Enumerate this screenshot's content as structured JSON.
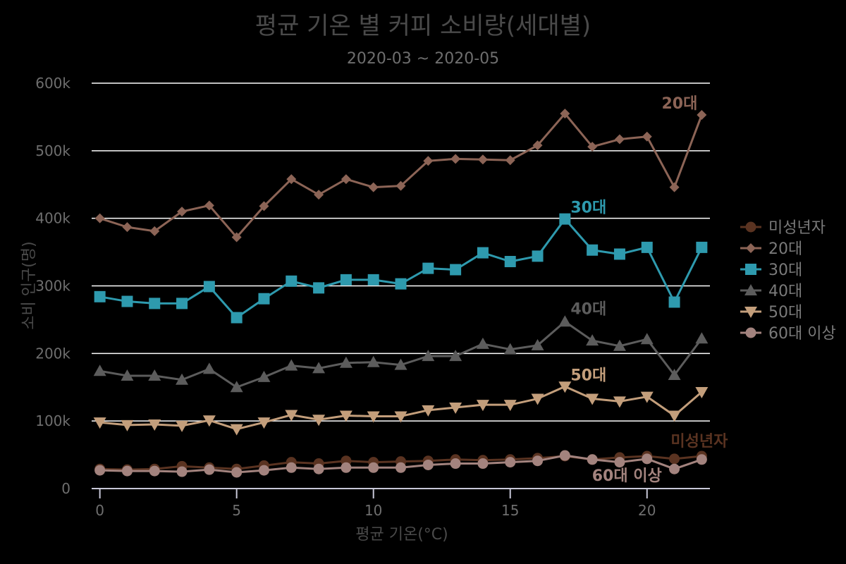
{
  "chart_data": {
    "type": "line",
    "title": "평균 기온 별 커피 소비량(세대별)",
    "subtitle": "2020-03 ~ 2020-05",
    "xlabel": "평균 기온(°C)",
    "ylabel": "소비 인구(명)",
    "xlim": [
      -0.3,
      22.3
    ],
    "ylim": [
      0,
      600000
    ],
    "x_ticks": [
      0,
      5,
      10,
      15,
      20
    ],
    "x_tick_labels": [
      "0",
      "5",
      "10",
      "15",
      "20"
    ],
    "y_ticks": [
      0,
      100000,
      200000,
      300000,
      400000,
      500000,
      600000
    ],
    "y_tick_labels": [
      "0",
      "100k",
      "200k",
      "300k",
      "400k",
      "500k",
      "600k"
    ],
    "grid": true,
    "legend_position": "right",
    "x": [
      0,
      1,
      2,
      3,
      4,
      5,
      6,
      7,
      8,
      9,
      10,
      11,
      12,
      13,
      14,
      15,
      16,
      17,
      18,
      19,
      20,
      21,
      22
    ],
    "series": [
      {
        "name": "미성년자",
        "color": "#5a3321",
        "marker": "circle",
        "end_label": "미성년자",
        "values": [
          29000,
          28000,
          29000,
          33000,
          31000,
          29000,
          34000,
          39000,
          37000,
          41000,
          39000,
          40000,
          41000,
          43000,
          42000,
          43000,
          45000,
          48000,
          43000,
          46000,
          48000,
          44000,
          48000
        ]
      },
      {
        "name": "20대",
        "color": "#8c6456",
        "marker": "diamond",
        "end_label": "20대",
        "values": [
          400000,
          387000,
          381000,
          410000,
          419000,
          372000,
          418000,
          458000,
          435000,
          458000,
          446000,
          448000,
          485000,
          488000,
          487000,
          486000,
          508000,
          555000,
          506000,
          517000,
          521000,
          446000,
          553000
        ]
      },
      {
        "name": "30대",
        "color": "#2e9aae",
        "marker": "square",
        "end_label": "30대",
        "values": [
          284000,
          277000,
          274000,
          274000,
          299000,
          253000,
          281000,
          307000,
          297000,
          309000,
          309000,
          303000,
          326000,
          324000,
          349000,
          336000,
          344000,
          399000,
          353000,
          347000,
          357000,
          276000,
          357000
        ]
      },
      {
        "name": "40대",
        "color": "#5c5c5c",
        "marker": "triangle-up",
        "end_label": "40대",
        "values": [
          174000,
          167000,
          167000,
          161000,
          177000,
          150000,
          165000,
          182000,
          178000,
          186000,
          187000,
          183000,
          196000,
          196000,
          214000,
          206000,
          212000,
          247000,
          219000,
          211000,
          221000,
          168000,
          222000
        ]
      },
      {
        "name": "50대",
        "color": "#c39e7b",
        "marker": "triangle-down",
        "end_label": "50대",
        "values": [
          98000,
          94000,
          95000,
          93000,
          101000,
          88000,
          98000,
          109000,
          102000,
          108000,
          107000,
          107000,
          116000,
          120000,
          124000,
          124000,
          133000,
          151000,
          133000,
          129000,
          136000,
          108000,
          143000
        ]
      },
      {
        "name": "60대 이상",
        "color": "#a3837e",
        "marker": "circle",
        "end_label": "60대 이상",
        "values": [
          27000,
          26000,
          26000,
          25000,
          28000,
          24000,
          27000,
          31000,
          29000,
          31000,
          31000,
          31000,
          35000,
          37000,
          37000,
          39000,
          41000,
          49000,
          43000,
          39000,
          44000,
          29000,
          43000
        ]
      }
    ],
    "annotations": [
      {
        "text": "20대",
        "series": "20대",
        "x": 22,
        "y": 553000
      },
      {
        "text": "30대",
        "series": "30대",
        "x": 17,
        "y": 399000
      },
      {
        "text": "40대",
        "series": "40대",
        "x": 17,
        "y": 247000
      },
      {
        "text": "50대",
        "series": "50대",
        "x": 17,
        "y": 151000
      },
      {
        "text": "미성년자",
        "series": "미성년자",
        "x": 22,
        "y": 48000
      },
      {
        "text": "60대 이상",
        "series": "60대 이상",
        "x": 20,
        "y": 44000
      }
    ]
  }
}
